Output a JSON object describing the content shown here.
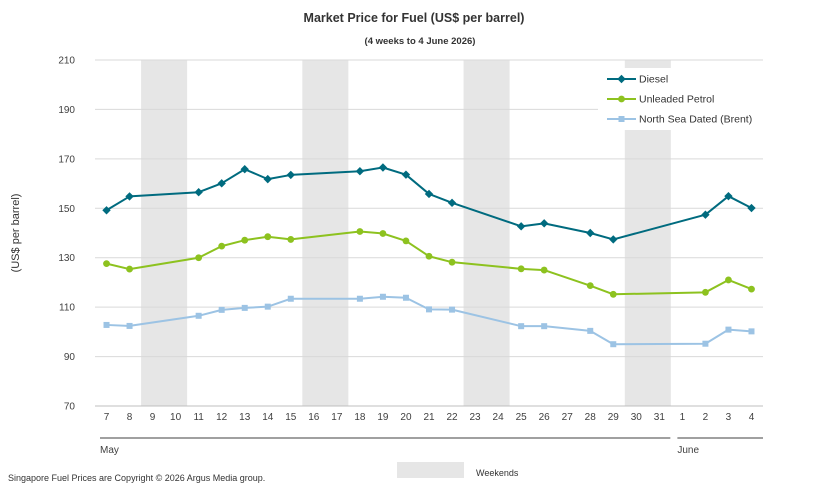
{
  "chart_data": {
    "type": "line",
    "title": "Market Price for Fuel (US$ per barrel)",
    "subtitle": "(4 weeks to 4 June 2026)",
    "ylabel": "(US$ per barrel)",
    "ylim": [
      70,
      210
    ],
    "yticks": [
      70,
      90,
      110,
      130,
      150,
      170,
      190,
      210
    ],
    "grid": "horizontal",
    "legend_position": "top-right",
    "categories": [
      "7",
      "8",
      "9",
      "10",
      "11",
      "12",
      "13",
      "14",
      "15",
      "16",
      "17",
      "18",
      "19",
      "20",
      "21",
      "22",
      "23",
      "24",
      "25",
      "26",
      "27",
      "28",
      "29",
      "30",
      "31",
      "1",
      "2",
      "3",
      "4"
    ],
    "month_labels": [
      {
        "label": "May",
        "from": "7",
        "to": "31"
      },
      {
        "label": "June",
        "from": "1",
        "to": "4"
      }
    ],
    "weekend_bands": [
      [
        "9",
        "10"
      ],
      [
        "16",
        "17"
      ],
      [
        "23",
        "24"
      ],
      [
        "30",
        "31"
      ]
    ],
    "weekend_legend_label": "Weekends",
    "series": [
      {
        "name": "Diesel",
        "color": "#006b7f",
        "marker": "diamond",
        "values": [
          149.2,
          154.8,
          null,
          null,
          156.5,
          160.1,
          165.8,
          161.8,
          163.5,
          null,
          null,
          165.0,
          166.5,
          163.6,
          155.8,
          152.2,
          null,
          null,
          142.7,
          143.9,
          null,
          140.0,
          137.4,
          null,
          null,
          null,
          147.4,
          154.9,
          150.1
        ]
      },
      {
        "name": "Unleaded Petrol",
        "color": "#8dc21f",
        "marker": "circle",
        "values": [
          127.6,
          125.4,
          null,
          null,
          130.0,
          134.7,
          137.1,
          138.5,
          137.4,
          null,
          null,
          140.6,
          139.8,
          136.8,
          130.6,
          128.2,
          null,
          null,
          125.5,
          125.0,
          null,
          118.7,
          115.2,
          null,
          null,
          null,
          116.0,
          121.0,
          117.3
        ]
      },
      {
        "name": "North Sea Dated (Brent)",
        "color": "#9cc3e4",
        "marker": "square",
        "values": [
          102.8,
          102.4,
          null,
          null,
          106.5,
          108.9,
          109.7,
          110.2,
          113.4,
          null,
          null,
          113.4,
          114.2,
          113.8,
          109.1,
          109.0,
          null,
          null,
          102.3,
          102.3,
          null,
          100.4,
          95.0,
          null,
          null,
          null,
          95.2,
          100.9,
          100.2
        ]
      }
    ]
  },
  "footer": {
    "copyright": "Singapore Fuel Prices are Copyright © 2026 Argus Media group."
  }
}
